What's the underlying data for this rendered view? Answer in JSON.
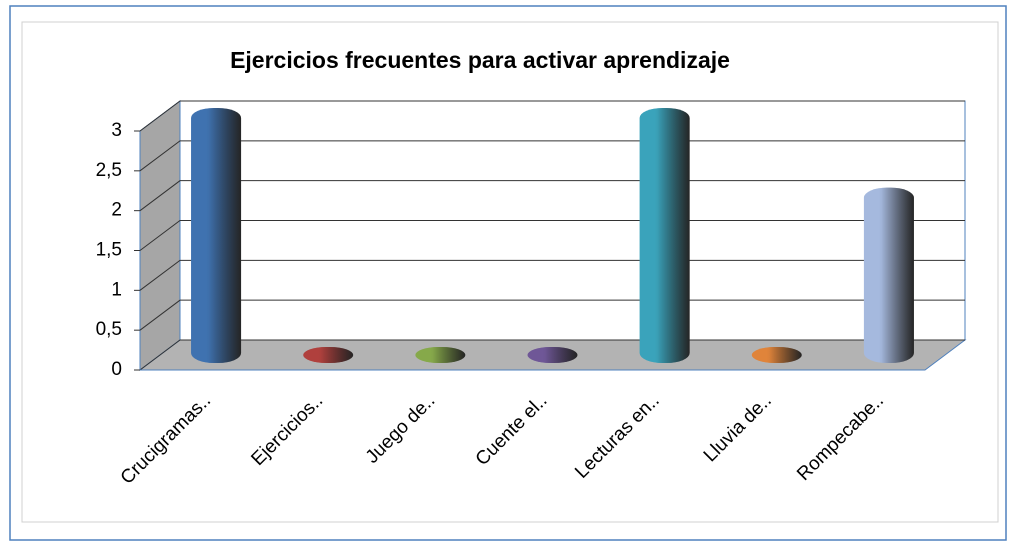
{
  "chart_data": {
    "type": "bar3d",
    "title": "Ejercicios frecuentes para activar aprendizaje",
    "categories": [
      "Crucigramas..",
      "Ejercicios..",
      "Juego de..",
      "Cuente el..",
      "Lecturas en..",
      "Lluvia de..",
      "Rompecabe.."
    ],
    "values": [
      3,
      0,
      0,
      0,
      3,
      0,
      2
    ],
    "colors": [
      "#3f72b0",
      "#b0403d",
      "#86a94a",
      "#6f5797",
      "#3aa3bb",
      "#e0843a",
      "#a5b9de"
    ],
    "ylim": [
      0,
      3
    ],
    "yticks": [
      0,
      {
        "value": 0.5,
        "label": "0,5"
      },
      1,
      {
        "value": 1.5,
        "label": "1,5"
      },
      2,
      {
        "value": 2.5,
        "label": "2,5"
      },
      3
    ],
    "grid": true
  }
}
